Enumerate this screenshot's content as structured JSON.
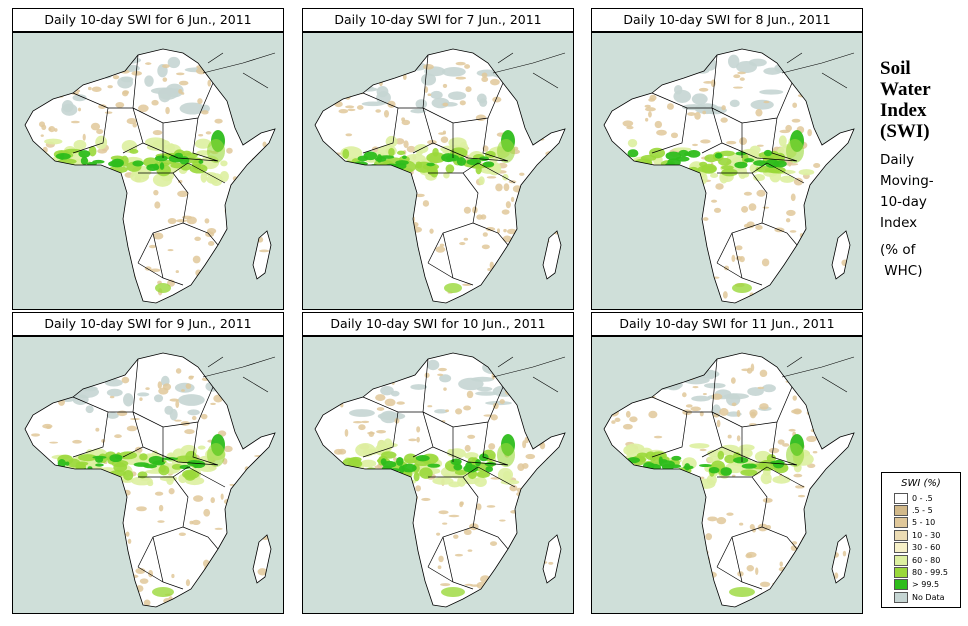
{
  "panels": [
    {
      "title": "Daily 10-day SWI for  6 Jun., 2011",
      "variant": 0
    },
    {
      "title": "Daily 10-day SWI for  7 Jun., 2011",
      "variant": 1
    },
    {
      "title": "Daily 10-day SWI for  8 Jun., 2011",
      "variant": 2
    },
    {
      "title": "Daily 10-day SWI for  9 Jun., 2011",
      "variant": 3
    },
    {
      "title": "Daily 10-day SWI for  10 Jun., 2011",
      "variant": 4
    },
    {
      "title": "Daily 10-day SWI for  11 Jun., 2011",
      "variant": 5
    }
  ],
  "side": {
    "title_lines": [
      "Soil",
      "Water",
      "Index",
      "(SWI)"
    ],
    "sub_lines": [
      "Daily",
      "Moving-",
      "10-day",
      "Index"
    ],
    "unit_lines": [
      "(% of",
      " WHC)"
    ]
  },
  "legend": {
    "title": "SWI (%)",
    "items": [
      {
        "label": "0 - .5",
        "color": "#ffffff"
      },
      {
        "label": ".5 - 5",
        "color": "#d2b98a"
      },
      {
        "label": "5 - 10",
        "color": "#e0c89a"
      },
      {
        "label": "10 - 30",
        "color": "#ecdcb4"
      },
      {
        "label": "30 - 60",
        "color": "#f6f0c8"
      },
      {
        "label": "60 - 80",
        "color": "#ddf0a0"
      },
      {
        "label": "80 - 99.5",
        "color": "#9ad83a"
      },
      {
        "label": "> 99.5",
        "color": "#2ebd1c"
      },
      {
        "label": "No Data",
        "color": "#c5d5d3"
      }
    ]
  },
  "colors": {
    "ocean": "#cfdfd9",
    "land": "#ffffff",
    "nodata": "#c5d5d3",
    "dry": "#e0c89a",
    "moist": "#ddf0a0",
    "wet": "#9ad83a",
    "saturated": "#2ebd1c"
  }
}
